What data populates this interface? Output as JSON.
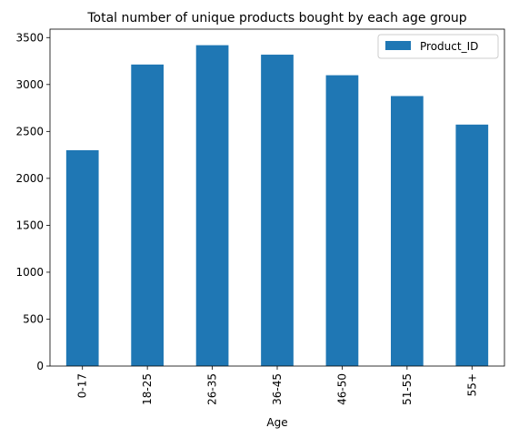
{
  "chart_data": {
    "type": "bar",
    "title": "Total number of unique products bought by each age group",
    "xlabel": "Age",
    "ylabel": "",
    "categories": [
      "0-17",
      "18-25",
      "26-35",
      "36-45",
      "46-50",
      "51-55",
      "55+"
    ],
    "series": [
      {
        "name": "Product_ID",
        "values": [
          2300,
          3213,
          3419,
          3318,
          3099,
          2877,
          2573
        ],
        "color": "#1f77b4"
      }
    ],
    "ylim": [
      0,
      3590
    ],
    "yticks": [
      0,
      500,
      1000,
      1500,
      2000,
      2500,
      3000,
      3500
    ],
    "grid": false,
    "legend_position": "top-right"
  }
}
